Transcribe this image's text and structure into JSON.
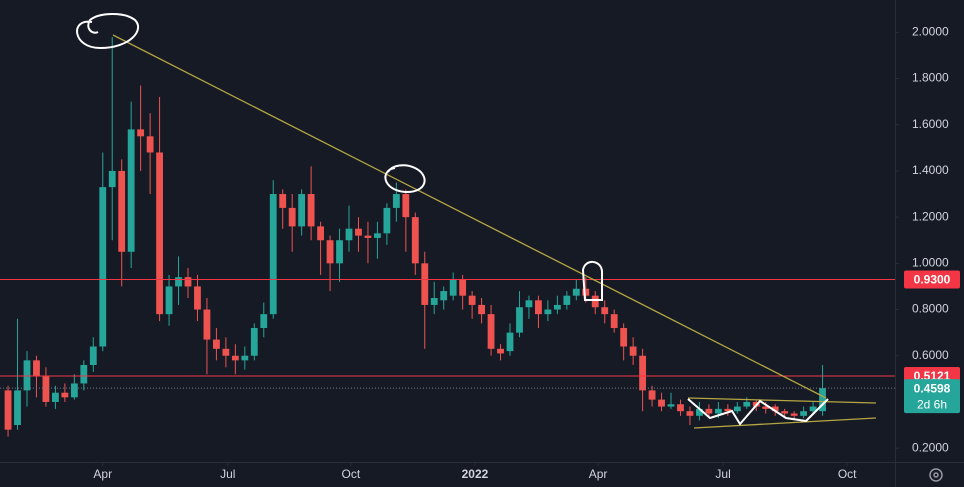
{
  "chart_data": {
    "type": "candlestick",
    "up_color": "#26a69a",
    "down_color": "#ef5350",
    "grid": false,
    "ylim": [
      0.14,
      2.14
    ],
    "yticks": [
      {
        "value": 0.2,
        "label": "0.2000"
      },
      {
        "value": 0.6,
        "label": "0.6000"
      },
      {
        "value": 0.8,
        "label": "0.8000"
      },
      {
        "value": 1.0,
        "label": "1.0000"
      },
      {
        "value": 1.2,
        "label": "1.2000"
      },
      {
        "value": 1.4,
        "label": "1.4000"
      },
      {
        "value": 1.6,
        "label": "1.6000"
      },
      {
        "value": 1.8,
        "label": "1.8000"
      },
      {
        "value": 2.0,
        "label": "2.0000"
      }
    ],
    "xlim": [
      -0.85,
      93.65
    ],
    "xticks": [
      {
        "value": 10.0,
        "label": "Apr"
      },
      {
        "value": 23.2,
        "label": "Jul"
      },
      {
        "value": 36.2,
        "label": "Oct"
      },
      {
        "value": 49.3,
        "label": "2022"
      },
      {
        "value": 62.3,
        "label": "Apr"
      },
      {
        "value": 75.5,
        "label": "Jul"
      },
      {
        "value": 88.6,
        "label": "Oct"
      }
    ],
    "open": [
      0.45,
      0.3,
      0.45,
      0.58,
      0.51,
      0.4,
      0.44,
      0.42,
      0.48,
      0.56,
      0.64,
      1.33,
      1.4,
      1.05,
      1.58,
      1.55,
      1.48,
      0.78,
      0.9,
      0.94,
      0.9,
      0.8,
      0.67,
      0.63,
      0.6,
      0.58,
      0.6,
      0.72,
      0.78,
      1.3,
      1.24,
      1.16,
      1.3,
      1.16,
      1.1,
      1.0,
      1.1,
      1.15,
      1.12,
      1.11,
      1.13,
      1.24,
      1.3,
      1.2,
      1.0,
      0.82,
      0.84,
      0.86,
      0.93,
      0.86,
      0.82,
      0.78,
      0.63,
      0.62,
      0.7,
      0.81,
      0.84,
      0.78,
      0.8,
      0.82,
      0.86,
      0.89,
      0.86,
      0.81,
      0.78,
      0.72,
      0.64,
      0.6,
      0.45,
      0.41,
      0.38,
      0.39,
      0.36,
      0.34,
      0.37,
      0.35,
      0.37,
      0.36,
      0.38,
      0.4,
      0.38,
      0.38,
      0.36,
      0.35,
      0.34,
      0.36,
      0.36
    ],
    "high": [
      0.47,
      0.76,
      0.62,
      0.6,
      0.55,
      0.47,
      0.48,
      0.52,
      0.58,
      0.68,
      1.48,
      1.98,
      1.45,
      1.7,
      1.77,
      1.65,
      1.72,
      0.95,
      1.03,
      0.98,
      0.95,
      0.85,
      0.72,
      0.68,
      0.65,
      0.64,
      0.74,
      0.83,
      1.36,
      1.32,
      1.3,
      1.32,
      1.42,
      1.18,
      1.12,
      1.15,
      1.25,
      1.2,
      1.18,
      1.18,
      1.26,
      1.35,
      1.32,
      1.22,
      1.05,
      0.92,
      0.9,
      0.96,
      0.95,
      0.88,
      0.85,
      0.82,
      0.65,
      0.74,
      0.88,
      0.86,
      0.86,
      0.84,
      0.86,
      0.88,
      0.93,
      0.94,
      0.88,
      0.84,
      0.8,
      0.74,
      0.68,
      0.63,
      0.47,
      0.44,
      0.44,
      0.41,
      0.38,
      0.4,
      0.39,
      0.4,
      0.39,
      0.4,
      0.42,
      0.41,
      0.4,
      0.39,
      0.37,
      0.36,
      0.38,
      0.4,
      0.56
    ],
    "low": [
      0.25,
      0.28,
      0.38,
      0.42,
      0.38,
      0.37,
      0.4,
      0.41,
      0.45,
      0.53,
      0.62,
      1.1,
      0.9,
      0.98,
      1.4,
      1.3,
      0.75,
      0.73,
      0.82,
      0.85,
      0.75,
      0.52,
      0.58,
      0.55,
      0.52,
      0.54,
      0.58,
      0.68,
      0.76,
      1.15,
      1.05,
      1.12,
      1.1,
      0.95,
      0.88,
      0.92,
      1.05,
      1.05,
      1.0,
      1.02,
      1.08,
      1.18,
      1.05,
      0.95,
      0.63,
      0.78,
      0.8,
      0.84,
      0.8,
      0.76,
      0.74,
      0.6,
      0.58,
      0.6,
      0.68,
      0.76,
      0.72,
      0.75,
      0.78,
      0.8,
      0.84,
      0.83,
      0.78,
      0.74,
      0.7,
      0.58,
      0.56,
      0.36,
      0.38,
      0.36,
      0.37,
      0.34,
      0.3,
      0.32,
      0.33,
      0.33,
      0.34,
      0.35,
      0.37,
      0.36,
      0.35,
      0.34,
      0.33,
      0.32,
      0.33,
      0.35,
      0.34
    ],
    "close": [
      0.28,
      0.45,
      0.58,
      0.51,
      0.4,
      0.44,
      0.42,
      0.48,
      0.56,
      0.64,
      1.33,
      1.4,
      1.05,
      1.58,
      1.55,
      1.48,
      0.78,
      0.9,
      0.94,
      0.9,
      0.8,
      0.67,
      0.63,
      0.6,
      0.58,
      0.6,
      0.72,
      0.78,
      1.3,
      1.24,
      1.16,
      1.3,
      1.16,
      1.1,
      1.0,
      1.1,
      1.15,
      1.12,
      1.11,
      1.13,
      1.24,
      1.3,
      1.2,
      1.0,
      0.82,
      0.85,
      0.88,
      0.93,
      0.86,
      0.82,
      0.78,
      0.63,
      0.61,
      0.7,
      0.81,
      0.84,
      0.78,
      0.8,
      0.82,
      0.86,
      0.89,
      0.86,
      0.81,
      0.78,
      0.72,
      0.64,
      0.6,
      0.45,
      0.41,
      0.38,
      0.39,
      0.36,
      0.34,
      0.37,
      0.35,
      0.37,
      0.36,
      0.38,
      0.4,
      0.38,
      0.37,
      0.36,
      0.35,
      0.34,
      0.36,
      0.38,
      0.4598
    ],
    "hlines": [
      {
        "value": 0.93,
        "label": "0.9300",
        "color": "#f23645"
      },
      {
        "value": 0.5121,
        "label": "0.5121",
        "color": "#f23645"
      }
    ],
    "price": {
      "value": 0.4598,
      "label": "0.4598",
      "countdown": "2d 6h",
      "color": "#26a69a"
    }
  }
}
